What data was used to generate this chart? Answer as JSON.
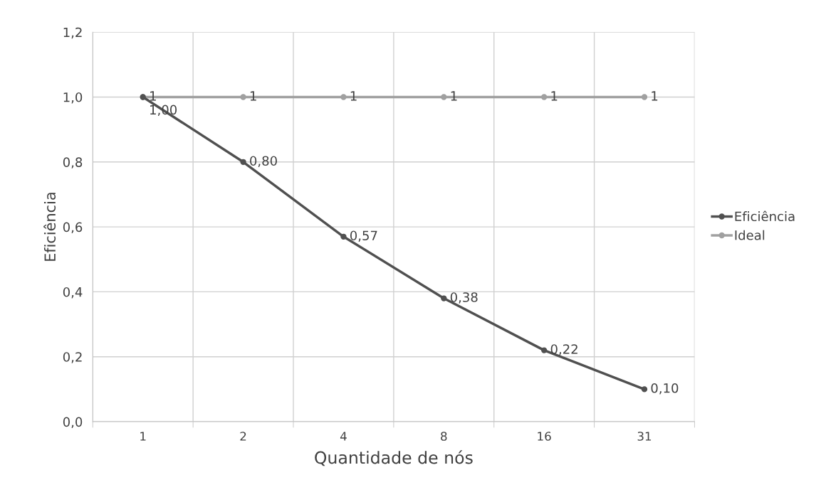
{
  "chart_data": {
    "type": "line",
    "xlabel": "Quantidade de nós",
    "ylabel": "Eficiência",
    "categories": [
      "1",
      "2",
      "4",
      "8",
      "16",
      "31"
    ],
    "series": [
      {
        "name": "Eficiência",
        "color": "#505050",
        "values": [
          1.0,
          0.8,
          0.57,
          0.38,
          0.22,
          0.1
        ],
        "value_labels": [
          "1,00",
          "0,80",
          "0,57",
          "0,38",
          "0,22",
          "0,10"
        ]
      },
      {
        "name": "Ideal",
        "color": "#a0a0a0",
        "values": [
          1,
          1,
          1,
          1,
          1,
          1
        ],
        "value_labels": [
          "1",
          "1",
          "1",
          "1",
          "1",
          "1"
        ]
      }
    ],
    "ylim": [
      0,
      1.2
    ],
    "yticks": [
      {
        "value": 0,
        "label": "0,0"
      },
      {
        "value": 0.2,
        "label": "0,2"
      },
      {
        "value": 0.4,
        "label": "0,4"
      },
      {
        "value": 0.6,
        "label": "0,6"
      },
      {
        "value": 0.8,
        "label": "0,8"
      },
      {
        "value": 1.0,
        "label": "1,0"
      },
      {
        "value": 1.2,
        "label": "1,2"
      }
    ],
    "grid": true,
    "legend": "right",
    "marker": "circle",
    "line_style": "solid"
  }
}
